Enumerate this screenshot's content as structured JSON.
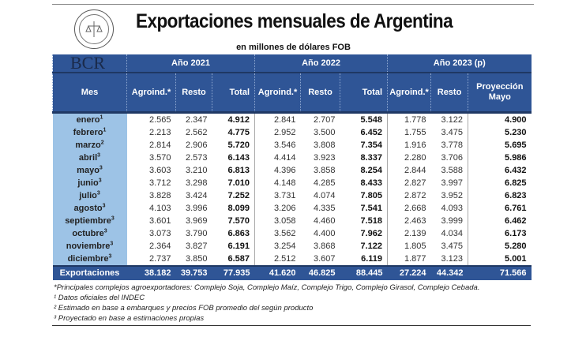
{
  "header": {
    "title": "Exportaciones mensuales de Argentina",
    "subtitle": "en millones de dólares FOB",
    "logo_text": "BOLSA DE COMERCIO DE ROSARIO",
    "brand": "BCR"
  },
  "colors": {
    "header_bg": "#2f5596",
    "month_bg": "#9dc3e6"
  },
  "columns": {
    "groups": [
      "Año 2021",
      "Año 2022",
      "Año 2023 (p)"
    ],
    "mes": "Mes",
    "sub": [
      "Agroind.*",
      "Resto",
      "Total",
      "Agroind.*",
      "Resto",
      "Total",
      "Agroind.*",
      "Resto",
      "Proyección Mayo"
    ]
  },
  "rows": [
    {
      "mes": "enero",
      "sup": "1",
      "v": [
        "2.565",
        "2.347",
        "4.912",
        "2.841",
        "2.707",
        "5.548",
        "1.778",
        "3.122",
        "4.900"
      ]
    },
    {
      "mes": "febrero",
      "sup": "1",
      "v": [
        "2.213",
        "2.562",
        "4.775",
        "2.952",
        "3.500",
        "6.452",
        "1.755",
        "3.475",
        "5.230"
      ]
    },
    {
      "mes": "marzo",
      "sup": "2",
      "v": [
        "2.814",
        "2.906",
        "5.720",
        "3.546",
        "3.808",
        "7.354",
        "1.916",
        "3.778",
        "5.695"
      ]
    },
    {
      "mes": "abril",
      "sup": "3",
      "v": [
        "3.570",
        "2.573",
        "6.143",
        "4.414",
        "3.923",
        "8.337",
        "2.280",
        "3.706",
        "5.986"
      ]
    },
    {
      "mes": "mayo",
      "sup": "3",
      "v": [
        "3.603",
        "3.210",
        "6.813",
        "4.396",
        "3.858",
        "8.254",
        "2.844",
        "3.588",
        "6.432"
      ]
    },
    {
      "mes": "junio",
      "sup": "3",
      "v": [
        "3.712",
        "3.298",
        "7.010",
        "4.148",
        "4.285",
        "8.433",
        "2.827",
        "3.997",
        "6.825"
      ]
    },
    {
      "mes": "julio",
      "sup": "3",
      "v": [
        "3.828",
        "3.424",
        "7.252",
        "3.731",
        "4.074",
        "7.805",
        "2.872",
        "3.952",
        "6.823"
      ]
    },
    {
      "mes": "agosto",
      "sup": "3",
      "v": [
        "4.103",
        "3.996",
        "8.099",
        "3.206",
        "4.335",
        "7.541",
        "2.668",
        "4.093",
        "6.761"
      ]
    },
    {
      "mes": "septiembre",
      "sup": "3",
      "v": [
        "3.601",
        "3.969",
        "7.570",
        "3.058",
        "4.460",
        "7.518",
        "2.463",
        "3.999",
        "6.462"
      ]
    },
    {
      "mes": "octubre",
      "sup": "3",
      "v": [
        "3.073",
        "3.790",
        "6.863",
        "3.562",
        "4.400",
        "7.962",
        "2.139",
        "4.034",
        "6.173"
      ]
    },
    {
      "mes": "noviembre",
      "sup": "3",
      "v": [
        "2.364",
        "3.827",
        "6.191",
        "3.254",
        "3.868",
        "7.122",
        "1.805",
        "3.475",
        "5.280"
      ]
    },
    {
      "mes": "diciembre",
      "sup": "3",
      "v": [
        "2.737",
        "3.850",
        "6.587",
        "2.512",
        "3.607",
        "6.119",
        "1.877",
        "3.123",
        "5.001"
      ]
    }
  ],
  "total": {
    "label": "Exportaciones",
    "v": [
      "38.182",
      "39.753",
      "77.935",
      "41.620",
      "46.825",
      "88.445",
      "27.224",
      "44.342",
      "71.566"
    ]
  },
  "notes": [
    "*Principales complejos agroexportadores: Complejo Soja, Complejo Maíz, Complejo Trigo, Complejo Girasol, Complejo Cebada.",
    "¹ Datos oficiales del INDEC",
    "² Estimado en base a embarques y precios FOB promedio del según producto",
    "³ Proyectado en base a estimaciones propias"
  ]
}
